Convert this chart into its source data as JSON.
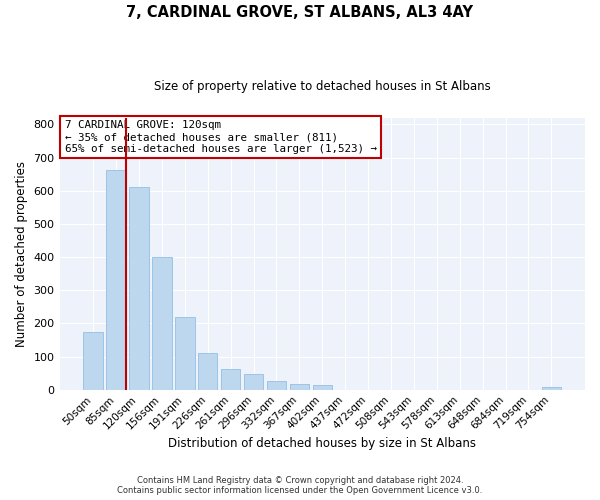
{
  "title": "7, CARDINAL GROVE, ST ALBANS, AL3 4AY",
  "subtitle": "Size of property relative to detached houses in St Albans",
  "xlabel": "Distribution of detached houses by size in St Albans",
  "ylabel": "Number of detached properties",
  "bin_labels": [
    "50sqm",
    "85sqm",
    "120sqm",
    "156sqm",
    "191sqm",
    "226sqm",
    "261sqm",
    "296sqm",
    "332sqm",
    "367sqm",
    "402sqm",
    "437sqm",
    "472sqm",
    "508sqm",
    "543sqm",
    "578sqm",
    "613sqm",
    "648sqm",
    "684sqm",
    "719sqm",
    "754sqm"
  ],
  "bar_values": [
    175,
    663,
    610,
    400,
    220,
    110,
    63,
    47,
    25,
    17,
    15,
    0,
    0,
    0,
    0,
    0,
    0,
    0,
    0,
    0,
    8
  ],
  "bar_color": "#bdd7ee",
  "bar_edge_color": "#9dc3e6",
  "marker_index": 2,
  "marker_color": "#c00000",
  "annotation_title": "7 CARDINAL GROVE: 120sqm",
  "annotation_line1": "← 35% of detached houses are smaller (811)",
  "annotation_line2": "65% of semi-detached houses are larger (1,523) →",
  "annotation_box_color": "#ffffff",
  "annotation_box_edge": "#c00000",
  "ylim": [
    0,
    820
  ],
  "yticks": [
    0,
    100,
    200,
    300,
    400,
    500,
    600,
    700,
    800
  ],
  "background_color": "#ffffff",
  "plot_bg_color": "#eef2fa",
  "grid_color": "#ffffff",
  "footer_line1": "Contains HM Land Registry data © Crown copyright and database right 2024.",
  "footer_line2": "Contains public sector information licensed under the Open Government Licence v3.0."
}
